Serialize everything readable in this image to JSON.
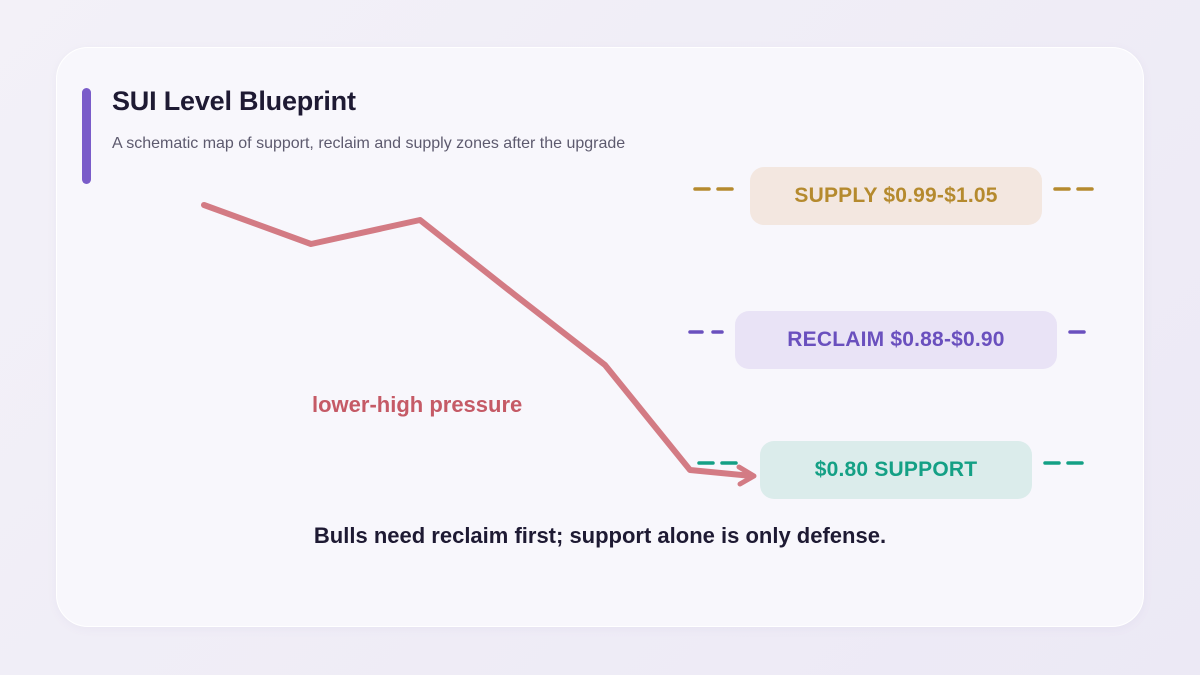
{
  "header": {
    "title": "SUI Level Blueprint",
    "subtitle": "A schematic map of support, reclaim and supply zones after the upgrade"
  },
  "zones": {
    "supply": {
      "label": "SUPPLY $0.99-$1.05",
      "text_color": "#b58a2e",
      "fill_color": "#f3e7e0",
      "line_color": "#b58a2e"
    },
    "reclaim": {
      "label": "RECLAIM $0.88-$0.90",
      "text_color": "#6a50be",
      "fill_color": "#e9e3f6",
      "line_color": "#6a50be"
    },
    "support": {
      "label": "$0.80 SUPPORT",
      "text_color": "#14a085",
      "fill_color": "#dbeceb",
      "line_color": "#14a085"
    }
  },
  "price_path": {
    "color": "#d37b84",
    "annotation": "lower-high pressure"
  },
  "footer": {
    "note": "Bulls need reclaim first; support alone is only defense."
  }
}
